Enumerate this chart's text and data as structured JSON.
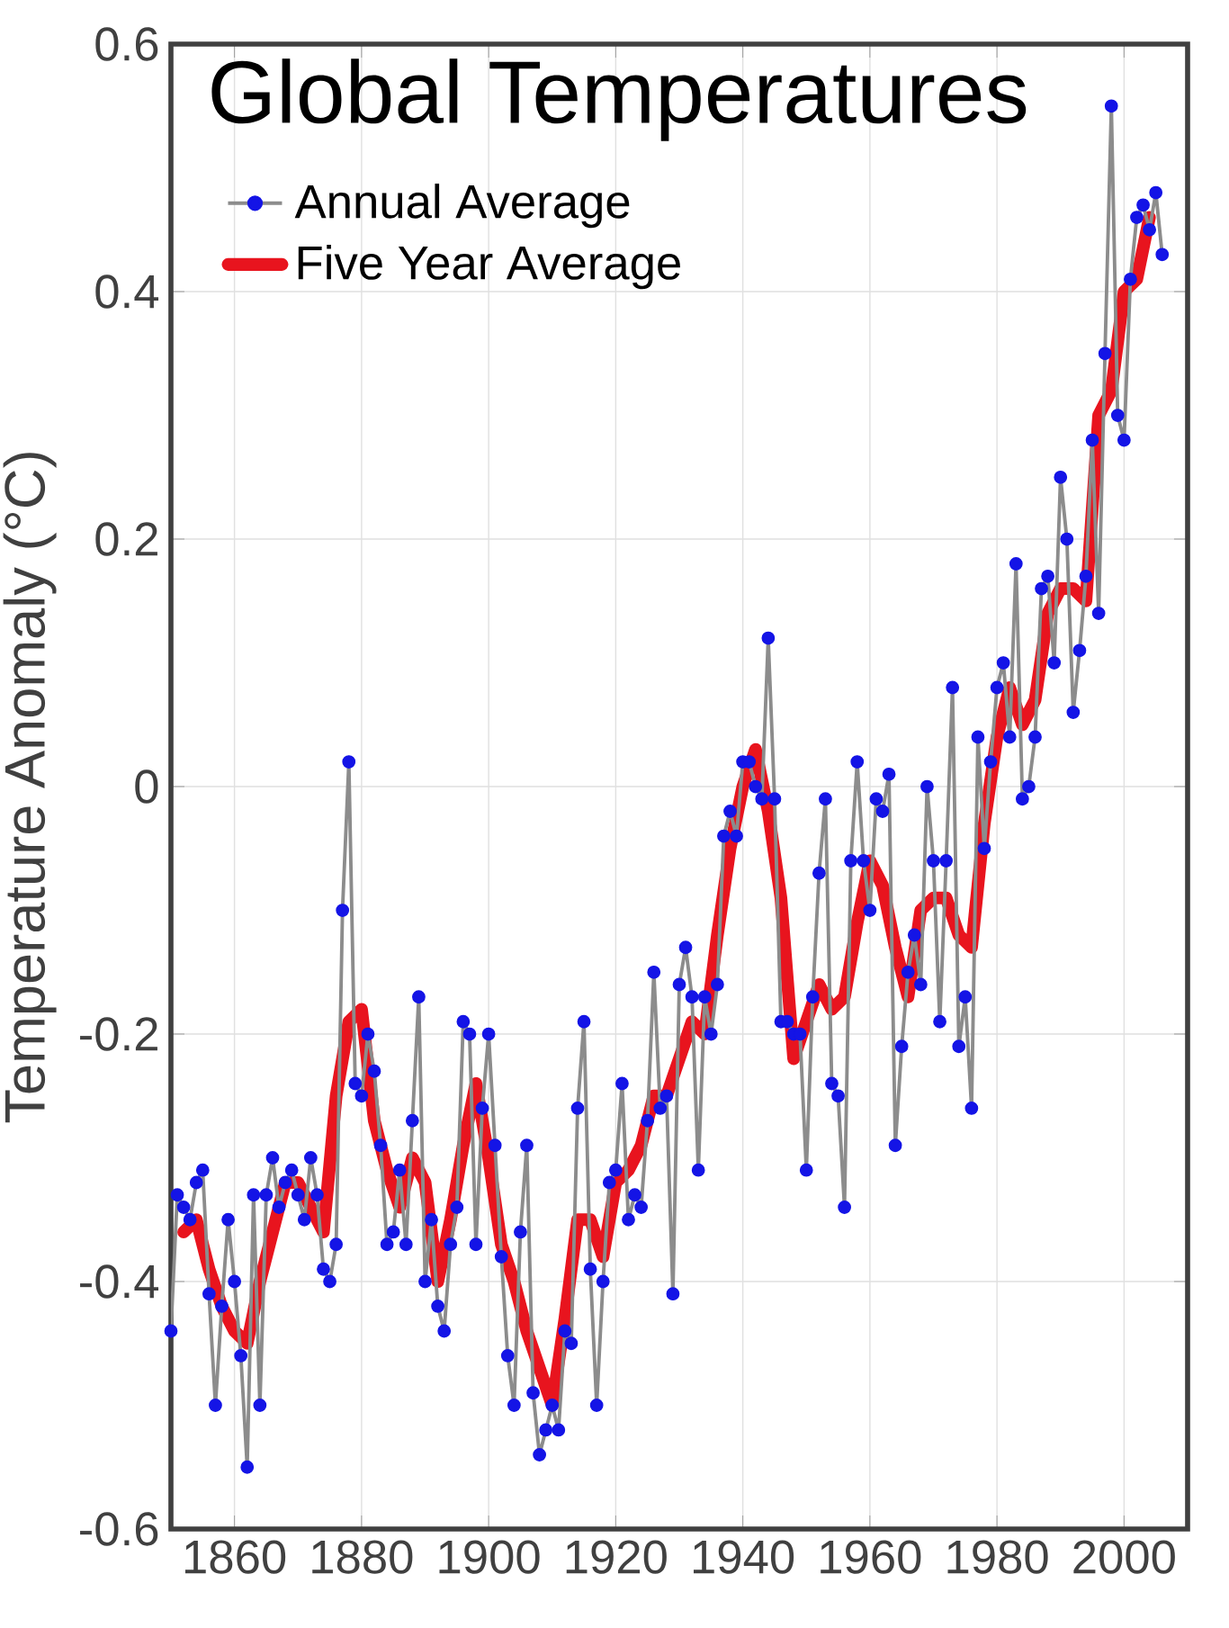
{
  "chart_data": {
    "type": "line",
    "title": "Global Temperatures",
    "ylabel": "Temperature Anomaly (°C)",
    "xlim": [
      1850,
      2010
    ],
    "xticks": [
      1860,
      1880,
      1900,
      1920,
      1940,
      1960,
      1980,
      2000
    ],
    "ylim": [
      -0.6,
      0.6
    ],
    "yticks": [
      -0.6,
      -0.4,
      -0.2,
      0,
      0.2,
      0.4,
      0.6
    ],
    "grid": true,
    "legend": "top left",
    "marker": "circle",
    "series": [
      {
        "name": "Annual Average",
        "color": "#1414e6",
        "x": [
          1850,
          1851,
          1852,
          1853,
          1854,
          1855,
          1856,
          1857,
          1858,
          1859,
          1860,
          1861,
          1862,
          1863,
          1864,
          1865,
          1866,
          1867,
          1868,
          1869,
          1870,
          1871,
          1872,
          1873,
          1874,
          1875,
          1876,
          1877,
          1878,
          1879,
          1880,
          1881,
          1882,
          1883,
          1884,
          1885,
          1886,
          1887,
          1888,
          1889,
          1890,
          1891,
          1892,
          1893,
          1894,
          1895,
          1896,
          1897,
          1898,
          1899,
          1900,
          1901,
          1902,
          1903,
          1904,
          1905,
          1906,
          1907,
          1908,
          1909,
          1910,
          1911,
          1912,
          1913,
          1914,
          1915,
          1916,
          1917,
          1918,
          1919,
          1920,
          1921,
          1922,
          1923,
          1924,
          1925,
          1926,
          1927,
          1928,
          1929,
          1930,
          1931,
          1932,
          1933,
          1934,
          1935,
          1936,
          1937,
          1938,
          1939,
          1940,
          1941,
          1942,
          1943,
          1944,
          1945,
          1946,
          1947,
          1948,
          1949,
          1950,
          1951,
          1952,
          1953,
          1954,
          1955,
          1956,
          1957,
          1958,
          1959,
          1960,
          1961,
          1962,
          1963,
          1964,
          1965,
          1966,
          1967,
          1968,
          1969,
          1970,
          1971,
          1972,
          1973,
          1974,
          1975,
          1976,
          1977,
          1978,
          1979,
          1980,
          1981,
          1982,
          1983,
          1984,
          1985,
          1986,
          1987,
          1988,
          1989,
          1990,
          1991,
          1992,
          1993,
          1994,
          1995,
          1996,
          1997,
          1998,
          1999,
          2000,
          2001,
          2002,
          2003,
          2004,
          2005,
          2006
        ],
        "values": [
          -0.44,
          -0.33,
          -0.34,
          -0.35,
          -0.32,
          -0.31,
          -0.41,
          -0.5,
          -0.42,
          -0.35,
          -0.4,
          -0.46,
          -0.55,
          -0.33,
          -0.5,
          -0.33,
          -0.3,
          -0.34,
          -0.32,
          -0.31,
          -0.33,
          -0.35,
          -0.3,
          -0.33,
          -0.39,
          -0.4,
          -0.37,
          -0.1,
          0.02,
          -0.24,
          -0.25,
          -0.2,
          -0.23,
          -0.29,
          -0.37,
          -0.36,
          -0.31,
          -0.37,
          -0.27,
          -0.17,
          -0.4,
          -0.35,
          -0.42,
          -0.44,
          -0.37,
          -0.34,
          -0.19,
          -0.2,
          -0.37,
          -0.26,
          -0.2,
          -0.29,
          -0.38,
          -0.46,
          -0.5,
          -0.36,
          -0.29,
          -0.49,
          -0.54,
          -0.52,
          -0.5,
          -0.52,
          -0.44,
          -0.45,
          -0.26,
          -0.19,
          -0.39,
          -0.5,
          -0.4,
          -0.32,
          -0.31,
          -0.24,
          -0.35,
          -0.33,
          -0.34,
          -0.27,
          -0.15,
          -0.26,
          -0.25,
          -0.41,
          -0.16,
          -0.13,
          -0.17,
          -0.31,
          -0.17,
          -0.2,
          -0.16,
          -0.04,
          -0.02,
          -0.04,
          0.02,
          0.02,
          0.0,
          -0.01,
          0.12,
          -0.01,
          -0.19,
          -0.19,
          -0.2,
          -0.2,
          -0.31,
          -0.17,
          -0.07,
          -0.01,
          -0.24,
          -0.25,
          -0.34,
          -0.06,
          0.02,
          -0.06,
          -0.1,
          -0.01,
          -0.02,
          0.01,
          -0.29,
          -0.21,
          -0.15,
          -0.12,
          -0.16,
          0.0,
          -0.06,
          -0.19,
          -0.06,
          0.08,
          -0.21,
          -0.17,
          -0.26,
          0.04,
          -0.05,
          0.02,
          0.08,
          0.1,
          0.04,
          0.18,
          -0.01,
          0.0,
          0.04,
          0.16,
          0.17,
          0.1,
          0.25,
          0.2,
          0.06,
          0.11,
          0.17,
          0.28,
          0.14,
          0.35,
          0.55,
          0.3,
          0.28,
          0.41,
          0.46,
          0.47,
          0.45,
          0.48,
          0.43
        ]
      },
      {
        "name": "Five Year Average",
        "color": "#e8141e",
        "marker": "none",
        "x": [
          1852,
          1854,
          1856,
          1858,
          1860,
          1862,
          1864,
          1866,
          1868,
          1870,
          1872,
          1874,
          1876,
          1878,
          1880,
          1882,
          1884,
          1886,
          1888,
          1890,
          1892,
          1894,
          1896,
          1898,
          1900,
          1902,
          1904,
          1906,
          1908,
          1910,
          1912,
          1914,
          1916,
          1918,
          1920,
          1922,
          1924,
          1926,
          1928,
          1930,
          1932,
          1934,
          1936,
          1938,
          1940,
          1942,
          1944,
          1946,
          1948,
          1950,
          1952,
          1954,
          1956,
          1958,
          1960,
          1962,
          1964,
          1966,
          1968,
          1970,
          1972,
          1974,
          1976,
          1978,
          1980,
          1982,
          1984,
          1986,
          1988,
          1990,
          1992,
          1994,
          1996,
          1998,
          2000,
          2002,
          2004
        ],
        "values": [
          -0.36,
          -0.35,
          -0.39,
          -0.42,
          -0.44,
          -0.45,
          -0.4,
          -0.36,
          -0.32,
          -0.32,
          -0.34,
          -0.36,
          -0.25,
          -0.19,
          -0.18,
          -0.27,
          -0.31,
          -0.34,
          -0.3,
          -0.32,
          -0.4,
          -0.35,
          -0.29,
          -0.24,
          -0.3,
          -0.37,
          -0.4,
          -0.44,
          -0.47,
          -0.5,
          -0.43,
          -0.35,
          -0.35,
          -0.38,
          -0.32,
          -0.31,
          -0.29,
          -0.25,
          -0.25,
          -0.22,
          -0.19,
          -0.2,
          -0.12,
          -0.05,
          0.0,
          0.03,
          -0.02,
          -0.09,
          -0.22,
          -0.19,
          -0.16,
          -0.18,
          -0.17,
          -0.11,
          -0.06,
          -0.08,
          -0.13,
          -0.17,
          -0.1,
          -0.09,
          -0.09,
          -0.12,
          -0.13,
          -0.03,
          0.04,
          0.08,
          0.05,
          0.07,
          0.14,
          0.16,
          0.16,
          0.15,
          0.3,
          0.32,
          0.4,
          0.41,
          0.46
        ]
      }
    ]
  }
}
